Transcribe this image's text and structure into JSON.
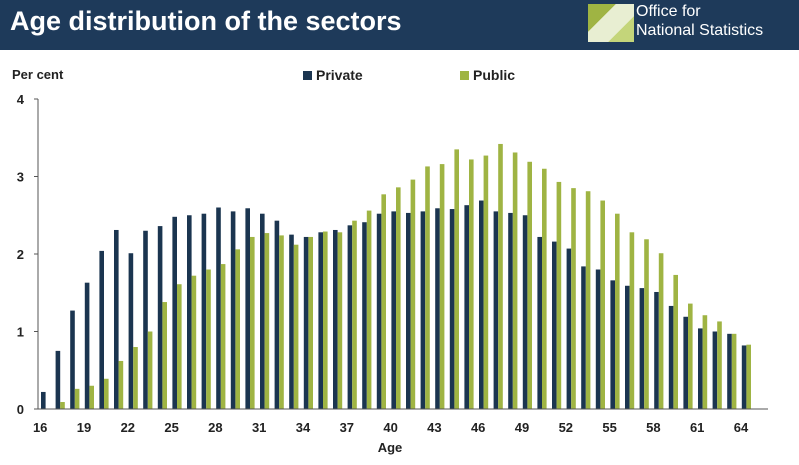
{
  "header": {
    "title": "Age distribution of the sectors",
    "logo_line1": "Office for",
    "logo_line2": "National Statistics",
    "bg_color": "#1e3a5a"
  },
  "chart_data": {
    "type": "bar",
    "title": "Age distribution of the sectors",
    "ylabel": "Per cent",
    "xlabel": "Age",
    "ylim": [
      0,
      4
    ],
    "yticks": [
      0,
      1,
      2,
      3,
      4
    ],
    "xticks": [
      16,
      19,
      22,
      25,
      28,
      31,
      34,
      37,
      40,
      43,
      46,
      49,
      52,
      55,
      58,
      61,
      64
    ],
    "legend_position": "top",
    "categories": [
      16,
      17,
      18,
      19,
      20,
      21,
      22,
      23,
      24,
      25,
      26,
      27,
      28,
      29,
      30,
      31,
      32,
      33,
      34,
      35,
      36,
      37,
      38,
      39,
      40,
      41,
      42,
      43,
      44,
      45,
      46,
      47,
      48,
      49,
      50,
      51,
      52,
      53,
      54,
      55,
      56,
      57,
      58,
      59,
      60,
      61,
      62,
      63,
      64,
      65
    ],
    "series": [
      {
        "name": "Private",
        "color": "#1b3550",
        "values": [
          0.22,
          0.75,
          1.27,
          1.63,
          2.04,
          2.31,
          2.01,
          2.3,
          2.36,
          2.48,
          2.5,
          2.52,
          2.6,
          2.55,
          2.59,
          2.52,
          2.43,
          2.25,
          2.22,
          2.28,
          2.31,
          2.37,
          2.41,
          2.52,
          2.55,
          2.53,
          2.55,
          2.59,
          2.58,
          2.63,
          2.69,
          2.55,
          2.53,
          2.5,
          2.22,
          2.16,
          2.07,
          1.84,
          1.8,
          1.66,
          1.59,
          1.56,
          1.51,
          1.33,
          1.19,
          1.04,
          1.0,
          0.97,
          0.82,
          0.0
        ]
      },
      {
        "name": "Public",
        "color": "#9fb443",
        "values": [
          0.0,
          0.09,
          0.26,
          0.3,
          0.39,
          0.62,
          0.8,
          1.0,
          1.38,
          1.61,
          1.72,
          1.8,
          1.87,
          2.06,
          2.22,
          2.27,
          2.24,
          2.12,
          2.22,
          2.29,
          2.28,
          2.43,
          2.56,
          2.77,
          2.86,
          2.96,
          3.13,
          3.16,
          3.35,
          3.22,
          3.27,
          3.42,
          3.31,
          3.19,
          3.1,
          2.93,
          2.85,
          2.81,
          2.69,
          2.52,
          2.28,
          2.19,
          2.01,
          1.73,
          1.36,
          1.21,
          1.13,
          0.97,
          0.83,
          0.0
        ]
      }
    ]
  }
}
